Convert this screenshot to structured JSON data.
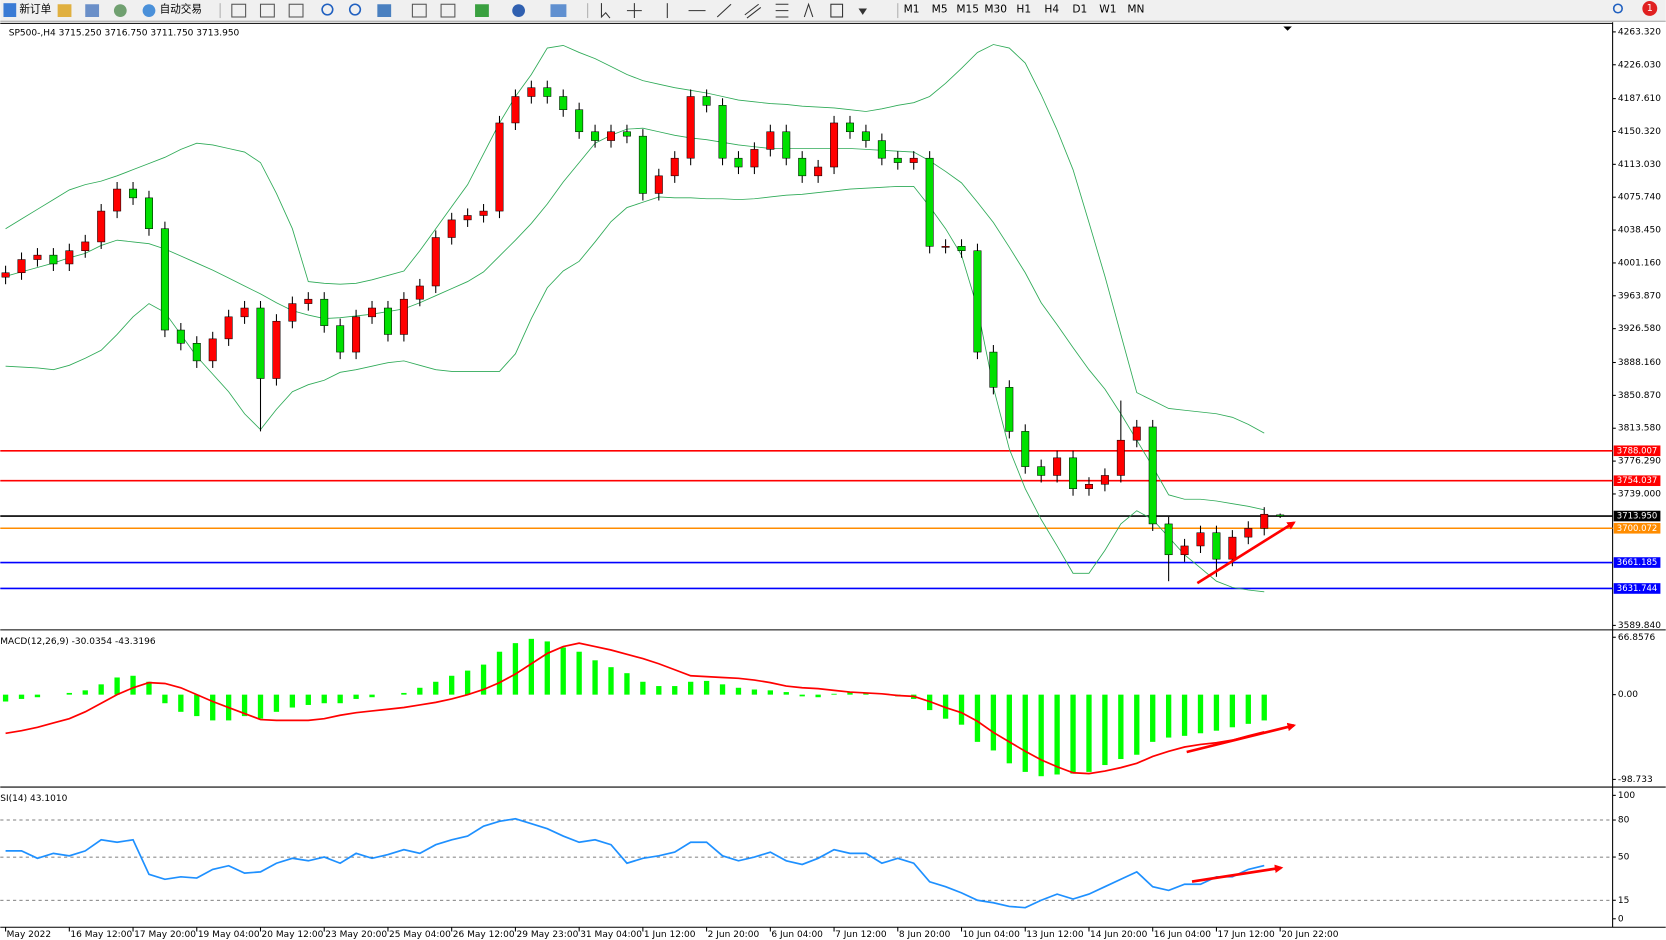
{
  "toolbar": {
    "new_order": "新订单",
    "auto_trading": "自动交易",
    "timeframes": [
      "M1",
      "M5",
      "M15",
      "M30",
      "H1",
      "H4",
      "D1",
      "W1",
      "MN"
    ],
    "badge": "1"
  },
  "chart_data": [
    {
      "type": "candlestick",
      "title": "SP500-,H4  3715.250 3716.750 3711.750 3713.950",
      "categories": [
        "May 2022",
        null,
        null,
        null,
        "16 May 12:00",
        null,
        null,
        null,
        "17 May 20:00",
        null,
        null,
        null,
        "19 May 04:00",
        null,
        null,
        null,
        "20 May 12:00",
        null,
        null,
        null,
        "23 May 20:00",
        null,
        null,
        null,
        "25 May 04:00",
        null,
        null,
        null,
        "26 May 12:00",
        null,
        null,
        null,
        "29 May 23:00",
        null,
        null,
        null,
        "31 May 04:00",
        null,
        null,
        null,
        "1 Jun 12:00",
        null,
        null,
        null,
        "2 Jun 20:00",
        null,
        null,
        null,
        "6 Jun 04:00",
        null,
        null,
        null,
        "7 Jun 12:00",
        null,
        null,
        null,
        "8 Jun 20:00",
        null,
        null,
        null,
        "10 Jun 04:00",
        null,
        null,
        null,
        "13 Jun 12:00",
        null,
        null,
        null,
        "14 Jun 20:00",
        null,
        null,
        null,
        "16 Jun 04:00",
        null,
        null,
        null,
        "17 Jun 12:00",
        null,
        null,
        null,
        "20 Jun 22:00"
      ],
      "open": [
        3985,
        3990,
        4005,
        4010,
        4000,
        4015,
        4025,
        4060,
        4085,
        4075,
        4040,
        3925,
        3910,
        3890,
        3915,
        3940,
        3950,
        3870,
        3935,
        3955,
        3960,
        3930,
        3900,
        3940,
        3950,
        3920,
        3960,
        3975,
        4030,
        4050,
        4055,
        4060,
        4160,
        4190,
        4200,
        4190,
        4175,
        4150,
        4140,
        4150,
        4145,
        4080,
        4100,
        4120,
        4190,
        4180,
        4120,
        4110,
        4130,
        4150,
        4120,
        4100,
        4110,
        4160,
        4150,
        4140,
        4120,
        4115,
        4120,
        4020,
        4020,
        4015,
        3900,
        3860,
        3810,
        3770,
        3760,
        3780,
        3745,
        3750,
        3760,
        3800,
        3815,
        3705,
        3670,
        3680,
        3695,
        3665,
        3690,
        3700,
        3715.25
      ],
      "high": [
        3998,
        4013,
        4018,
        4018,
        4023,
        4033,
        4068,
        4093,
        4093,
        4083,
        4048,
        3933,
        3918,
        3923,
        3948,
        3958,
        3958,
        3943,
        3963,
        3968,
        3968,
        3938,
        3948,
        3958,
        3958,
        3968,
        3983,
        4038,
        4058,
        4063,
        4068,
        4168,
        4198,
        4208,
        4208,
        4198,
        4183,
        4158,
        4158,
        4158,
        4153,
        4108,
        4128,
        4198,
        4198,
        4188,
        4128,
        4138,
        4158,
        4158,
        4128,
        4118,
        4168,
        4168,
        4158,
        4148,
        4128,
        4128,
        4128,
        4028,
        4028,
        4023,
        3908,
        3868,
        3818,
        3778,
        3788,
        3788,
        3758,
        3768,
        3845,
        3823,
        3823,
        3713,
        3688,
        3703,
        3703,
        3698,
        3708,
        3724,
        3716.75
      ],
      "low": [
        3977,
        3982,
        3997,
        3992,
        3992,
        4007,
        4017,
        4052,
        4067,
        4032,
        3917,
        3902,
        3882,
        3882,
        3907,
        3932,
        3810,
        3862,
        3927,
        3947,
        3922,
        3892,
        3892,
        3932,
        3912,
        3912,
        3952,
        3967,
        4022,
        4042,
        4047,
        4052,
        4152,
        4182,
        4182,
        4167,
        4142,
        4132,
        4132,
        4137,
        4072,
        4072,
        4092,
        4112,
        4172,
        4112,
        4102,
        4102,
        4122,
        4112,
        4092,
        4092,
        4102,
        4142,
        4132,
        4112,
        4107,
        4107,
        4012,
        4012,
        4007,
        3892,
        3852,
        3802,
        3762,
        3752,
        3752,
        3737,
        3737,
        3742,
        3752,
        3792,
        3697,
        3640,
        3662,
        3672,
        3645,
        3657,
        3682,
        3692,
        3711.75
      ],
      "close": [
        3990,
        4005,
        4010,
        4000,
        4015,
        4025,
        4060,
        4085,
        4075,
        4040,
        3925,
        3910,
        3890,
        3915,
        3940,
        3950,
        3870,
        3935,
        3955,
        3960,
        3930,
        3900,
        3940,
        3950,
        3920,
        3960,
        3975,
        4030,
        4050,
        4055,
        4060,
        4160,
        4190,
        4200,
        4190,
        4175,
        4150,
        4140,
        4150,
        4145,
        4080,
        4100,
        4120,
        4190,
        4180,
        4120,
        4110,
        4130,
        4150,
        4120,
        4100,
        4110,
        4160,
        4150,
        4140,
        4120,
        4115,
        4120,
        4020,
        4020,
        4015,
        3900,
        3860,
        3810,
        3770,
        3760,
        3780,
        3745,
        3750,
        3760,
        3800,
        3815,
        3705,
        3670,
        3680,
        3695,
        3665,
        3690,
        3700,
        3716,
        3713.95
      ],
      "up_color": "#ff0000",
      "down_color": "#00e000",
      "series": [
        {
          "color": "#2eaa57",
          "values": [
            4040,
            4051,
            4062,
            4073,
            4084,
            4090,
            4094,
            4100,
            4107,
            4114,
            4121,
            4130,
            4137,
            4135,
            4131,
            4127,
            4115,
            4080,
            4040,
            3980,
            3978,
            3977,
            3978,
            3982,
            3987,
            3992,
            4015,
            4040,
            4065,
            4090,
            4125,
            4160,
            4190,
            4215,
            4245,
            4248,
            4240,
            4233,
            4224,
            4215,
            4208,
            4204,
            4200,
            4197,
            4194,
            4190,
            4186,
            4184,
            4182,
            4181,
            4179,
            4178,
            4177,
            4175,
            4173,
            4176,
            4180,
            4183,
            4190,
            4205,
            4222,
            4240,
            4249,
            4245,
            4228,
            4192,
            4152,
            4107,
            4047,
            3986,
            3920,
            3854,
            3845,
            3836,
            3834,
            3832,
            3830,
            3826,
            3818,
            3808,
            null
          ]
        },
        {
          "color": "#2eaa57",
          "values": [
            3986,
            3991,
            3996,
            4001,
            4007,
            4012,
            4021,
            4027,
            4025,
            4023,
            4017,
            4009,
            4001,
            3993,
            3984,
            3975,
            3966,
            3956,
            3947,
            3942,
            3938,
            3939,
            3941,
            3943,
            3946,
            3949,
            3956,
            3964,
            3972,
            3980,
            3991,
            4009,
            4027,
            4046,
            4068,
            4093,
            4115,
            4137,
            4146,
            4153,
            4154,
            4150,
            4146,
            4143,
            4141,
            4138,
            4135,
            4133,
            4131,
            4131,
            4131,
            4131,
            4131,
            4131,
            4130,
            4129,
            4128,
            4127,
            4117,
            4105,
            4092,
            4070,
            4047,
            4019,
            3990,
            3956,
            3931,
            3905,
            3880,
            3858,
            3830,
            3800,
            3770,
            3738,
            3733,
            3733,
            3731,
            3728,
            3725,
            3721,
            null
          ]
        },
        {
          "color": "#2eaa57",
          "values": [
            3884,
            3883,
            3882,
            3880,
            3885,
            3893,
            3902,
            3920,
            3940,
            3955,
            3945,
            3920,
            3895,
            3875,
            3855,
            3830,
            3812,
            3835,
            3855,
            3863,
            3868,
            3877,
            3880,
            3884,
            3888,
            3890,
            3885,
            3880,
            3878,
            3878,
            3878,
            3878,
            3898,
            3938,
            3973,
            3992,
            4003,
            4025,
            4048,
            4064,
            4070,
            4076,
            4075,
            4075,
            4074,
            4074,
            4073,
            4074,
            4076,
            4078,
            4079,
            4081,
            4083,
            4085,
            4086,
            4087,
            4088,
            4088,
            4065,
            4040,
            4010,
            3950,
            3860,
            3790,
            3745,
            3710,
            3680,
            3649,
            3649,
            3675,
            3705,
            3720,
            3710,
            3690,
            3670,
            3655,
            3640,
            3633,
            3630,
            3628,
            null
          ]
        }
      ],
      "levels": [
        {
          "value": 3788.007,
          "color": "#ff0000"
        },
        {
          "value": 3754.037,
          "color": "#ff0000"
        },
        {
          "value": 3713.95,
          "label": "3713.950",
          "color": "#000000"
        },
        {
          "value": 3700.072,
          "color": "#ff8c00"
        },
        {
          "value": 3661.185,
          "color": "#0000ff"
        },
        {
          "value": 3631.744,
          "color": "#0000ff"
        }
      ],
      "ylim": [
        3586,
        4273
      ],
      "yticks": [
        {
          "value": 4263.32,
          "label": "4263.320"
        },
        {
          "value": 4226.03,
          "label": "4226.030"
        },
        {
          "value": 4187.61,
          "label": "4187.610"
        },
        {
          "value": 4150.32,
          "label": "4150.320"
        },
        {
          "value": 4113.03,
          "label": "4113.030"
        },
        {
          "value": 4075.74,
          "label": "4075.740"
        },
        {
          "value": 4038.45,
          "label": "4038.450"
        },
        {
          "value": 4001.16,
          "label": "4001.160"
        },
        {
          "value": 3963.87,
          "label": "3963.870"
        },
        {
          "value": 3926.58,
          "label": "3926.580"
        },
        {
          "value": 3888.16,
          "label": "3888.160"
        },
        {
          "value": 3850.87,
          "label": "3850.870"
        },
        {
          "value": 3813.58,
          "label": "3813.580"
        },
        {
          "value": 3776.29,
          "label": "3776.290"
        },
        {
          "value": 3739,
          "label": "3739.000"
        },
        {
          "value": 3589.84,
          "label": "3589.840"
        }
      ]
    },
    {
      "type": "macd",
      "title": "MACD(12,26,9) -30.0354 -43.3196",
      "ylim": [
        -106.4,
        73
      ],
      "yticks": [
        66.8576,
        {
          "value": 0,
          "label": "0.00"
        },
        -98.733
      ],
      "series": [
        {
          "type": "bar",
          "color": "#00ff00",
          "values": [
            -8,
            -5,
            -3,
            0,
            2,
            5,
            12,
            20,
            22,
            15,
            -10,
            -20,
            -25,
            -30,
            -30,
            -25,
            -28,
            -20,
            -15,
            -12,
            -10,
            -10,
            -5,
            -3,
            0,
            2,
            8,
            15,
            22,
            28,
            35,
            50,
            60,
            65,
            62,
            55,
            50,
            40,
            32,
            25,
            15,
            10,
            10,
            15,
            16,
            12,
            8,
            6,
            5,
            3,
            -2,
            -3,
            1,
            3,
            2,
            0,
            -2,
            -5,
            -18,
            -28,
            -35,
            -55,
            -65,
            -80,
            -90,
            -95,
            -93,
            -92,
            -90,
            -82,
            -75,
            -70,
            -55,
            -50,
            -48,
            -45,
            -42,
            -38,
            -34,
            -30.0354,
            null
          ]
        },
        {
          "type": "line",
          "color": "#ff0000",
          "values": [
            -45,
            -42,
            -38,
            -33,
            -28,
            -20,
            -10,
            0,
            8,
            14,
            13,
            8,
            0,
            -8,
            -15,
            -22,
            -29,
            -30,
            -30,
            -30,
            -28,
            -24,
            -21,
            -19,
            -17,
            -15,
            -12,
            -9,
            -5,
            0,
            6,
            14,
            24,
            36,
            48,
            56,
            60,
            56,
            52,
            47,
            42,
            36,
            29,
            22,
            21,
            20,
            19,
            17,
            14,
            10,
            8,
            7,
            5,
            3,
            2,
            1,
            -1,
            -2,
            -8,
            -15,
            -21,
            -31,
            -44,
            -55,
            -66,
            -76,
            -84,
            -91,
            -92,
            -89,
            -85,
            -80,
            -72,
            -66,
            -61,
            -58,
            -56,
            -53,
            -48,
            -43.3196,
            null
          ]
        }
      ]
    },
    {
      "type": "line",
      "title": "SI(14) 43.1010",
      "ylim": [
        -6,
        105
      ],
      "yticks": [
        100,
        80,
        50,
        15,
        0
      ],
      "levels": [
        80,
        50,
        15
      ],
      "series": [
        {
          "color": "#1e90ff",
          "values": [
            55,
            55,
            49,
            53,
            51,
            55,
            64,
            62,
            64,
            36,
            32,
            34,
            33,
            40,
            43,
            37,
            38,
            45,
            49,
            47,
            50,
            45,
            53,
            49,
            52,
            56,
            53,
            60,
            64,
            67,
            75,
            79,
            81,
            77,
            73,
            67,
            62,
            64,
            60,
            45,
            49,
            51,
            54,
            62,
            62,
            51,
            47,
            50,
            54,
            47,
            44,
            49,
            56,
            53,
            53,
            45,
            49,
            45,
            30,
            26,
            21,
            15,
            13,
            10,
            9,
            15,
            20,
            16,
            20,
            26,
            32,
            38,
            26,
            23,
            28,
            28,
            34,
            34,
            40,
            43.101,
            null
          ]
        }
      ]
    }
  ]
}
